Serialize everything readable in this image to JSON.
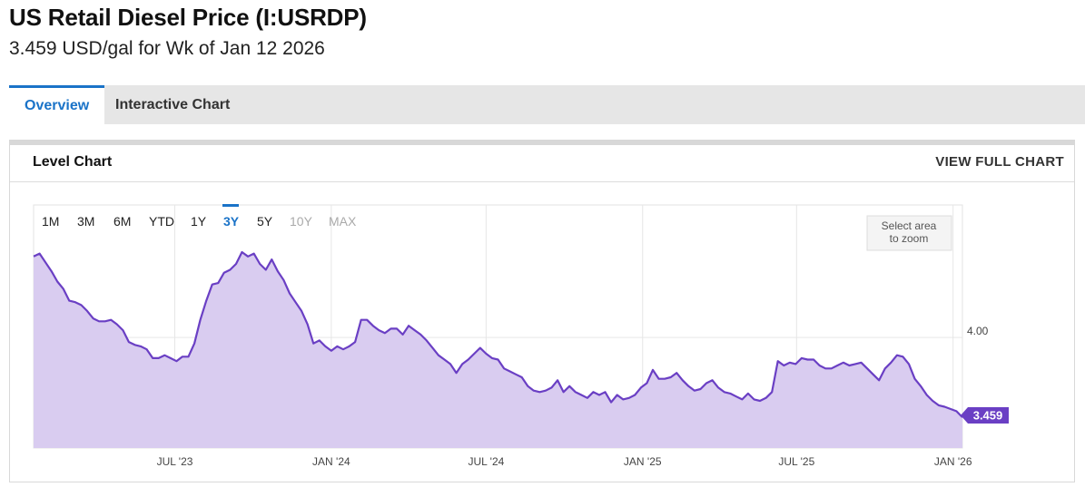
{
  "header": {
    "title": "US Retail Diesel Price (I:USRDP)",
    "subtitle": "3.459 USD/gal for Wk of Jan 12 2026"
  },
  "tabs": [
    {
      "label": "Overview",
      "active": true
    },
    {
      "label": "Interactive Chart",
      "active": false
    }
  ],
  "panel": {
    "title": "Level Chart",
    "link": "VIEW FULL CHART"
  },
  "range_buttons": [
    {
      "label": "1M",
      "state": "normal"
    },
    {
      "label": "3M",
      "state": "normal"
    },
    {
      "label": "6M",
      "state": "normal"
    },
    {
      "label": "YTD",
      "state": "normal"
    },
    {
      "label": "1Y",
      "state": "normal"
    },
    {
      "label": "3Y",
      "state": "active"
    },
    {
      "label": "5Y",
      "state": "normal"
    },
    {
      "label": "10Y",
      "state": "disabled"
    },
    {
      "label": "MAX",
      "state": "disabled"
    }
  ],
  "zoom_hint": [
    "Select area",
    "to zoom"
  ],
  "colors": {
    "line": "#6a3fc4",
    "fill": "#d9ccf0",
    "accent": "#1a73c8",
    "last_badge": "#6a3fc4"
  },
  "chart_data": {
    "type": "area",
    "x_start": "2023-01-16",
    "x_end": "2026-01-12",
    "ylim": [
      3.25,
      4.9
    ],
    "yticks": [
      {
        "value": 4.0,
        "label": "4.00"
      }
    ],
    "xticks": [
      {
        "date": "2023-07-01",
        "label": "JUL '23"
      },
      {
        "date": "2024-01-01",
        "label": "JAN '24"
      },
      {
        "date": "2024-07-01",
        "label": "JUL '24"
      },
      {
        "date": "2025-01-01",
        "label": "JAN '25"
      },
      {
        "date": "2025-07-01",
        "label": "JUL '25"
      },
      {
        "date": "2026-01-01",
        "label": "JAN '26"
      }
    ],
    "last_value_label": "3.459",
    "points": [
      [
        "2023-01-16",
        4.55
      ],
      [
        "2023-01-23",
        4.57
      ],
      [
        "2023-01-30",
        4.51
      ],
      [
        "2023-02-06",
        4.45
      ],
      [
        "2023-02-13",
        4.38
      ],
      [
        "2023-02-20",
        4.33
      ],
      [
        "2023-02-27",
        4.25
      ],
      [
        "2023-03-06",
        4.24
      ],
      [
        "2023-03-13",
        4.22
      ],
      [
        "2023-03-20",
        4.18
      ],
      [
        "2023-03-27",
        4.13
      ],
      [
        "2023-04-03",
        4.11
      ],
      [
        "2023-04-10",
        4.11
      ],
      [
        "2023-04-17",
        4.12
      ],
      [
        "2023-04-24",
        4.09
      ],
      [
        "2023-05-01",
        4.05
      ],
      [
        "2023-05-08",
        3.97
      ],
      [
        "2023-05-15",
        3.95
      ],
      [
        "2023-05-22",
        3.94
      ],
      [
        "2023-05-29",
        3.92
      ],
      [
        "2023-06-05",
        3.86
      ],
      [
        "2023-06-12",
        3.86
      ],
      [
        "2023-06-19",
        3.88
      ],
      [
        "2023-06-26",
        3.86
      ],
      [
        "2023-07-03",
        3.84
      ],
      [
        "2023-07-10",
        3.87
      ],
      [
        "2023-07-17",
        3.87
      ],
      [
        "2023-07-24",
        3.96
      ],
      [
        "2023-07-31",
        4.12
      ],
      [
        "2023-08-07",
        4.25
      ],
      [
        "2023-08-14",
        4.36
      ],
      [
        "2023-08-21",
        4.37
      ],
      [
        "2023-08-28",
        4.44
      ],
      [
        "2023-09-04",
        4.46
      ],
      [
        "2023-09-11",
        4.5
      ],
      [
        "2023-09-18",
        4.58
      ],
      [
        "2023-09-25",
        4.55
      ],
      [
        "2023-10-02",
        4.57
      ],
      [
        "2023-10-09",
        4.5
      ],
      [
        "2023-10-16",
        4.46
      ],
      [
        "2023-10-23",
        4.53
      ],
      [
        "2023-10-30",
        4.45
      ],
      [
        "2023-11-06",
        4.39
      ],
      [
        "2023-11-13",
        4.3
      ],
      [
        "2023-11-20",
        4.24
      ],
      [
        "2023-11-27",
        4.18
      ],
      [
        "2023-12-04",
        4.09
      ],
      [
        "2023-12-11",
        3.96
      ],
      [
        "2023-12-18",
        3.98
      ],
      [
        "2023-12-25",
        3.94
      ],
      [
        "2024-01-01",
        3.91
      ],
      [
        "2024-01-08",
        3.94
      ],
      [
        "2024-01-15",
        3.92
      ],
      [
        "2024-01-22",
        3.94
      ],
      [
        "2024-01-29",
        3.97
      ],
      [
        "2024-02-05",
        4.12
      ],
      [
        "2024-02-12",
        4.12
      ],
      [
        "2024-02-19",
        4.08
      ],
      [
        "2024-02-26",
        4.05
      ],
      [
        "2024-03-04",
        4.03
      ],
      [
        "2024-03-11",
        4.06
      ],
      [
        "2024-03-18",
        4.06
      ],
      [
        "2024-03-25",
        4.02
      ],
      [
        "2024-04-01",
        4.08
      ],
      [
        "2024-04-08",
        4.05
      ],
      [
        "2024-04-15",
        4.02
      ],
      [
        "2024-04-22",
        3.98
      ],
      [
        "2024-04-29",
        3.93
      ],
      [
        "2024-05-06",
        3.88
      ],
      [
        "2024-05-13",
        3.85
      ],
      [
        "2024-05-20",
        3.82
      ],
      [
        "2024-05-27",
        3.76
      ],
      [
        "2024-06-03",
        3.82
      ],
      [
        "2024-06-10",
        3.85
      ],
      [
        "2024-06-17",
        3.89
      ],
      [
        "2024-06-24",
        3.93
      ],
      [
        "2024-07-01",
        3.89
      ],
      [
        "2024-07-08",
        3.86
      ],
      [
        "2024-07-15",
        3.85
      ],
      [
        "2024-07-22",
        3.79
      ],
      [
        "2024-07-29",
        3.77
      ],
      [
        "2024-08-05",
        3.75
      ],
      [
        "2024-08-12",
        3.73
      ],
      [
        "2024-08-19",
        3.67
      ],
      [
        "2024-08-26",
        3.64
      ],
      [
        "2024-09-02",
        3.63
      ],
      [
        "2024-09-09",
        3.64
      ],
      [
        "2024-09-16",
        3.66
      ],
      [
        "2024-09-23",
        3.71
      ],
      [
        "2024-09-30",
        3.63
      ],
      [
        "2024-10-07",
        3.67
      ],
      [
        "2024-10-14",
        3.63
      ],
      [
        "2024-10-21",
        3.61
      ],
      [
        "2024-10-28",
        3.59
      ],
      [
        "2024-11-04",
        3.63
      ],
      [
        "2024-11-11",
        3.61
      ],
      [
        "2024-11-18",
        3.63
      ],
      [
        "2024-11-25",
        3.56
      ],
      [
        "2024-12-02",
        3.61
      ],
      [
        "2024-12-09",
        3.58
      ],
      [
        "2024-12-16",
        3.59
      ],
      [
        "2024-12-23",
        3.61
      ],
      [
        "2024-12-30",
        3.66
      ],
      [
        "2025-01-06",
        3.69
      ],
      [
        "2025-01-13",
        3.78
      ],
      [
        "2025-01-20",
        3.72
      ],
      [
        "2025-01-27",
        3.72
      ],
      [
        "2025-02-03",
        3.73
      ],
      [
        "2025-02-10",
        3.76
      ],
      [
        "2025-02-17",
        3.71
      ],
      [
        "2025-02-24",
        3.67
      ],
      [
        "2025-03-03",
        3.64
      ],
      [
        "2025-03-10",
        3.65
      ],
      [
        "2025-03-17",
        3.69
      ],
      [
        "2025-03-24",
        3.71
      ],
      [
        "2025-03-31",
        3.66
      ],
      [
        "2025-04-07",
        3.63
      ],
      [
        "2025-04-14",
        3.62
      ],
      [
        "2025-04-21",
        3.6
      ],
      [
        "2025-04-28",
        3.58
      ],
      [
        "2025-05-05",
        3.62
      ],
      [
        "2025-05-12",
        3.58
      ],
      [
        "2025-05-19",
        3.57
      ],
      [
        "2025-05-26",
        3.59
      ],
      [
        "2025-06-02",
        3.63
      ],
      [
        "2025-06-09",
        3.84
      ],
      [
        "2025-06-16",
        3.81
      ],
      [
        "2025-06-23",
        3.83
      ],
      [
        "2025-06-30",
        3.82
      ],
      [
        "2025-07-07",
        3.86
      ],
      [
        "2025-07-14",
        3.85
      ],
      [
        "2025-07-21",
        3.85
      ],
      [
        "2025-07-28",
        3.81
      ],
      [
        "2025-08-04",
        3.79
      ],
      [
        "2025-08-11",
        3.79
      ],
      [
        "2025-08-18",
        3.81
      ],
      [
        "2025-08-25",
        3.83
      ],
      [
        "2025-09-01",
        3.81
      ],
      [
        "2025-09-08",
        3.82
      ],
      [
        "2025-09-15",
        3.83
      ],
      [
        "2025-09-22",
        3.79
      ],
      [
        "2025-09-29",
        3.75
      ],
      [
        "2025-10-06",
        3.71
      ],
      [
        "2025-10-13",
        3.79
      ],
      [
        "2025-10-20",
        3.83
      ],
      [
        "2025-10-27",
        3.88
      ],
      [
        "2025-11-03",
        3.87
      ],
      [
        "2025-11-10",
        3.82
      ],
      [
        "2025-11-17",
        3.72
      ],
      [
        "2025-11-24",
        3.67
      ],
      [
        "2025-12-01",
        3.61
      ],
      [
        "2025-12-08",
        3.57
      ],
      [
        "2025-12-15",
        3.54
      ],
      [
        "2025-12-22",
        3.53
      ],
      [
        "2026-01-05",
        3.5
      ],
      [
        "2026-01-12",
        3.459
      ]
    ]
  }
}
